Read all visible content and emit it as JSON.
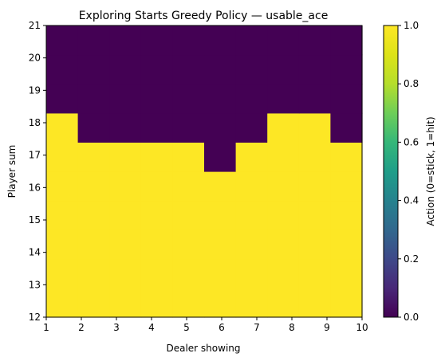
{
  "chart_data": {
    "type": "heatmap",
    "title": "Exploring Starts Greedy Policy — usable_ace",
    "xlabel": "Dealer showing",
    "ylabel": "Player sum",
    "xlim": [
      1,
      10
    ],
    "ylim": [
      12,
      21
    ],
    "xticks": [
      "1",
      "2",
      "3",
      "4",
      "5",
      "6",
      "7",
      "8",
      "9",
      "10"
    ],
    "yticks": [
      "12",
      "13",
      "14",
      "15",
      "16",
      "17",
      "18",
      "19",
      "20",
      "21"
    ],
    "columns": [
      "1",
      "2",
      "3",
      "4",
      "5",
      "6",
      "7",
      "8",
      "9",
      "10"
    ],
    "rows": [
      "12",
      "13",
      "14",
      "15",
      "16",
      "17",
      "18",
      "19",
      "20",
      "21"
    ],
    "values": [
      [
        1,
        1,
        1,
        1,
        1,
        1,
        1,
        1,
        1,
        1
      ],
      [
        1,
        1,
        1,
        1,
        1,
        1,
        1,
        1,
        1,
        1
      ],
      [
        1,
        1,
        1,
        1,
        1,
        1,
        1,
        1,
        1,
        1
      ],
      [
        1,
        1,
        1,
        1,
        1,
        1,
        1,
        1,
        1,
        1
      ],
      [
        1,
        1,
        1,
        1,
        1,
        1,
        1,
        1,
        1,
        1
      ],
      [
        1,
        1,
        1,
        1,
        1,
        0,
        1,
        1,
        1,
        1
      ],
      [
        1,
        0,
        0,
        0,
        0,
        0,
        0,
        1,
        1,
        0
      ],
      [
        0,
        0,
        0,
        0,
        0,
        0,
        0,
        0,
        0,
        0
      ],
      [
        0,
        0,
        0,
        0,
        0,
        0,
        0,
        0,
        0,
        0
      ],
      [
        0,
        0,
        0,
        0,
        0,
        0,
        0,
        0,
        0,
        0
      ]
    ],
    "colorbar": {
      "label": "Action (0=stick, 1=hit)",
      "ticks": [
        "0.0",
        "0.2",
        "0.4",
        "0.6",
        "0.8",
        "1.0"
      ],
      "range": [
        0,
        1
      ],
      "colormap": "viridis"
    },
    "colors": {
      "value_0": "#440154",
      "value_1": "#fde725"
    }
  }
}
